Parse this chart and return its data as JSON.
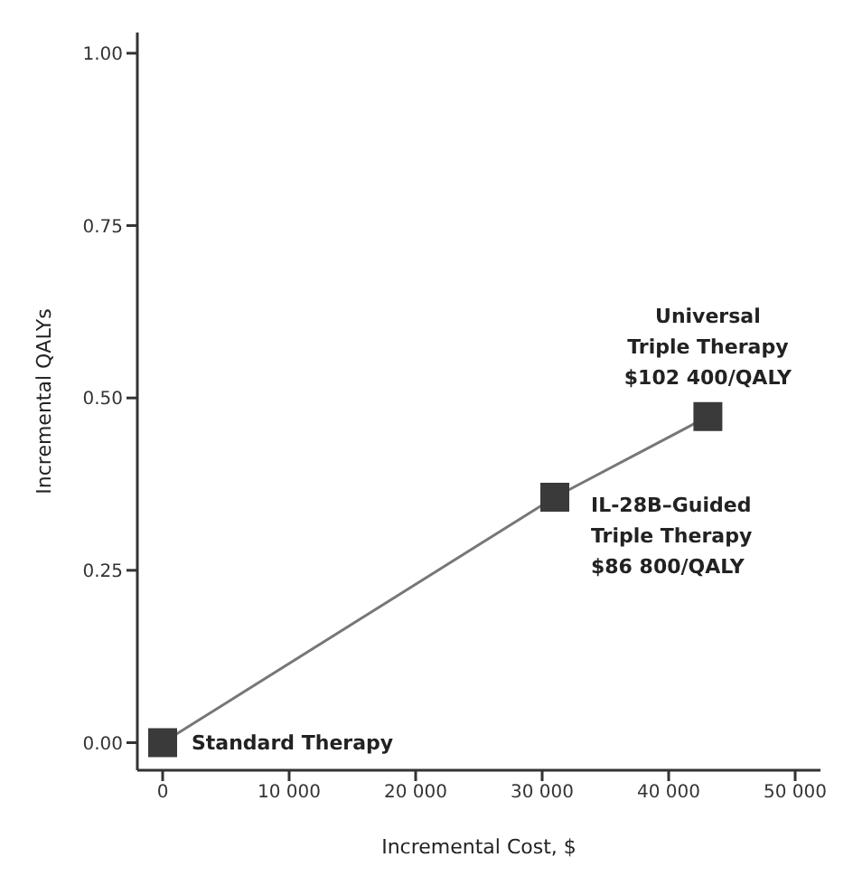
{
  "chart_data": {
    "type": "line",
    "xlabel": "Incremental Cost, $",
    "ylabel": "Incremental QALYs",
    "x": [
      0,
      31000,
      43100
    ],
    "series": [
      {
        "color": "#3a3a3a",
        "values": [
          0,
          0.356,
          0.473
        ]
      }
    ],
    "marker": "square",
    "line_style": "solid",
    "grid": false,
    "legend": false,
    "xlim": [
      -2000,
      52000
    ],
    "xticks": [
      0,
      {
        "value": 10000,
        "label": "10 000"
      },
      {
        "value": 20000,
        "label": "20 000"
      },
      {
        "value": 30000,
        "label": "30 000"
      },
      {
        "value": 40000,
        "label": "40 000"
      },
      {
        "value": 50000,
        "label": "50 000"
      }
    ],
    "ylim": [
      -0.04,
      1.03
    ],
    "yticks": [
      {
        "value": 0,
        "label": "0.00"
      },
      {
        "value": 0.25,
        "label": "0.25"
      },
      {
        "value": 0.5,
        "label": "0.50"
      },
      {
        "value": 0.75,
        "label": "0.75"
      },
      {
        "value": 1,
        "label": "1.00"
      }
    ],
    "annotations": [
      {
        "text": "Standard Therapy",
        "x": 0,
        "y": 0
      },
      {
        "text": "IL-28B–Guided\nTriple Therapy\n$86 800/QALY",
        "x": 31000,
        "y": 0.356
      },
      {
        "text": "Universal\nTriple Therapy\n$102 400/QALY",
        "x": 43100,
        "y": 0.473
      }
    ]
  }
}
